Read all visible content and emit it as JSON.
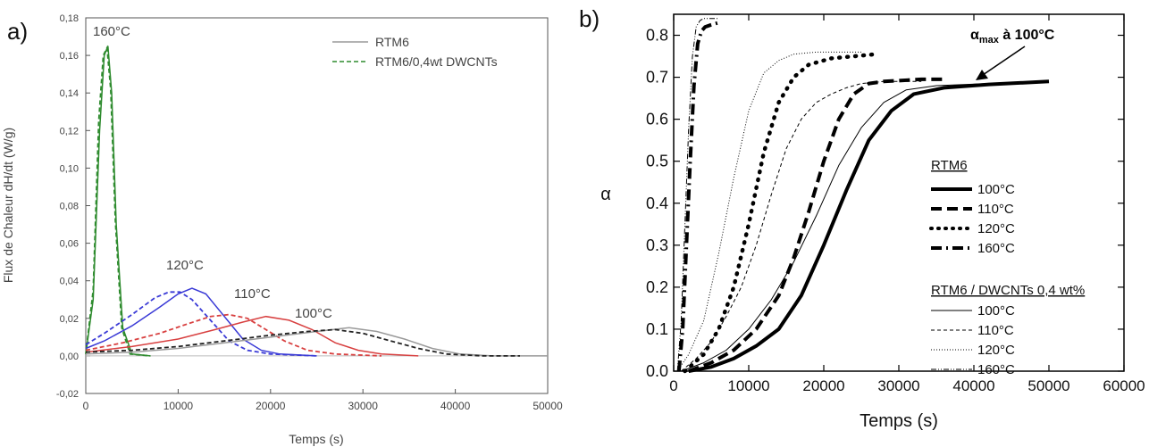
{
  "colors": {
    "rtm6": "#9a9a9a",
    "dwcnt_160": "#2e8b2e",
    "blue": "#3a3ad6",
    "red": "#d84040",
    "black": "#222222"
  },
  "panel_a": {
    "label": "a)",
    "ylabel": "Flux de Chaleur dH/dt (W/g)",
    "xlabel": "Temps (s)",
    "legend": [
      "RTM6",
      "RTM6/0,4wt DWCNTs"
    ],
    "annotations": [
      "160°C",
      "120°C",
      "110°C",
      "100°C"
    ]
  },
  "panel_b": {
    "label": "b)",
    "ylabel": "α",
    "xlabel": "Temps (s)",
    "annotation_main": "α",
    "annotation_sub": "max",
    "annotation_rest": " à 100°C",
    "legend_group1_title": "RTM6",
    "legend_group1": [
      "100°C",
      "110°C",
      "120°C",
      "160°C"
    ],
    "legend_group2_title": "RTM6 / DWCNTs 0,4 wt%",
    "legend_group2": [
      "100°C",
      "110°C",
      "120°C",
      "160°C"
    ]
  },
  "chart_data": [
    {
      "type": "line",
      "xlabel": "Temps (s)",
      "ylabel": "Flux de Chaleur dH/dt (W/g)",
      "xlim": [
        0,
        50000
      ],
      "ylim": [
        -0.02,
        0.18
      ],
      "xticks": [
        "0",
        "10000",
        "20000",
        "30000",
        "40000",
        "50000"
      ],
      "yticks": [
        "-0,02",
        "0,00",
        "0,02",
        "0,04",
        "0,06",
        "0,08",
        "0,10",
        "0,12",
        "0,14",
        "0,16",
        "0,18"
      ],
      "grid": false,
      "legend_position": "top-right",
      "series": [
        {
          "name": "RTM6",
          "temp": "160°C",
          "color": "#2e8b2e",
          "dash": false,
          "x": [
            0,
            800,
            1500,
            2000,
            2400,
            2800,
            3300,
            4000,
            5000,
            7000
          ],
          "y": [
            0.001,
            0.03,
            0.12,
            0.16,
            0.165,
            0.14,
            0.07,
            0.015,
            0.001,
            0
          ]
        },
        {
          "name": "RTM6/0,4wt DWCNTs",
          "temp": "160°C",
          "color": "#2e8b2e",
          "dash": true,
          "x": [
            0,
            800,
            1400,
            1900,
            2300,
            2700,
            3200,
            3900,
            4800,
            7000
          ],
          "y": [
            0.001,
            0.035,
            0.125,
            0.16,
            0.164,
            0.142,
            0.072,
            0.015,
            0.001,
            0
          ]
        },
        {
          "name": "RTM6",
          "temp": "120°C",
          "color": "#3a3ad6",
          "dash": false,
          "x": [
            0,
            2000,
            5000,
            8000,
            10000,
            11500,
            13000,
            15000,
            17000,
            19000,
            21000,
            25000
          ],
          "y": [
            0.004,
            0.008,
            0.016,
            0.026,
            0.033,
            0.036,
            0.033,
            0.021,
            0.009,
            0.003,
            0.001,
            0
          ]
        },
        {
          "name": "RTM6/0,4wt DWCNTs",
          "temp": "120°C",
          "color": "#3a3ad6",
          "dash": true,
          "x": [
            0,
            2000,
            5000,
            7500,
            9000,
            10200,
            11500,
            13500,
            15500,
            17500,
            20000,
            25000
          ],
          "y": [
            0.006,
            0.012,
            0.022,
            0.031,
            0.034,
            0.034,
            0.03,
            0.019,
            0.008,
            0.003,
            0.001,
            0
          ]
        },
        {
          "name": "RTM6",
          "temp": "110°C",
          "color": "#d84040",
          "dash": false,
          "x": [
            0,
            5000,
            10000,
            14000,
            17000,
            19500,
            22000,
            24500,
            27000,
            29500,
            32000,
            36000
          ],
          "y": [
            0.002,
            0.005,
            0.009,
            0.014,
            0.018,
            0.021,
            0.019,
            0.014,
            0.007,
            0.003,
            0.001,
            0
          ]
        },
        {
          "name": "RTM6/0,4wt DWCNTs",
          "temp": "110°C",
          "color": "#d84040",
          "dash": true,
          "x": [
            0,
            4000,
            8000,
            11000,
            13500,
            15500,
            17500,
            19500,
            21500,
            24000,
            27000,
            32000
          ],
          "y": [
            0.003,
            0.007,
            0.012,
            0.017,
            0.021,
            0.022,
            0.02,
            0.014,
            0.008,
            0.003,
            0.001,
            0
          ]
        },
        {
          "name": "RTM6",
          "temp": "100°C",
          "color": "#9a9a9a",
          "dash": false,
          "x": [
            0,
            5000,
            10000,
            15000,
            20000,
            25000,
            28500,
            31500,
            34500,
            37500,
            40500,
            44000,
            50000
          ],
          "y": [
            0.001,
            0.002,
            0.004,
            0.007,
            0.01,
            0.013,
            0.015,
            0.013,
            0.009,
            0.004,
            0.001,
            0,
            0
          ]
        },
        {
          "name": "RTM6/0,4wt DWCNTs",
          "temp": "100°C",
          "color": "#222222",
          "dash": true,
          "x": [
            0,
            5000,
            10000,
            15000,
            20000,
            24000,
            27000,
            30000,
            33000,
            36000,
            39000,
            43000,
            47000
          ],
          "y": [
            0.002,
            0.003,
            0.005,
            0.008,
            0.011,
            0.013,
            0.014,
            0.012,
            0.008,
            0.004,
            0.001,
            0,
            0
          ]
        }
      ]
    },
    {
      "type": "line",
      "xlabel": "Temps (s)",
      "ylabel": "α",
      "xlim": [
        0,
        60000
      ],
      "ylim": [
        0.0,
        0.85
      ],
      "xticks": [
        "0",
        "10000",
        "20000",
        "30000",
        "40000",
        "50000",
        "60000"
      ],
      "yticks": [
        "0.0",
        "0.1",
        "0.2",
        "0.3",
        "0.4",
        "0.5",
        "0.6",
        "0.7",
        "0.8"
      ],
      "grid": false,
      "legend_position": "center-right",
      "series": [
        {
          "name": "RTM6 100°C",
          "style": "thick-solid",
          "x": [
            2000,
            5000,
            8000,
            11000,
            14000,
            17000,
            20000,
            23000,
            26000,
            29000,
            32000,
            36000,
            42000,
            50000
          ],
          "y": [
            0,
            0.01,
            0.03,
            0.06,
            0.1,
            0.18,
            0.3,
            0.43,
            0.55,
            0.62,
            0.66,
            0.675,
            0.683,
            0.69
          ]
        },
        {
          "name": "RTM6 110°C",
          "style": "thick-dash",
          "x": [
            2000,
            5000,
            8000,
            11000,
            14000,
            16000,
            18000,
            20000,
            22000,
            24000,
            26000,
            28000,
            33000,
            36000
          ],
          "y": [
            0,
            0.02,
            0.05,
            0.1,
            0.18,
            0.27,
            0.38,
            0.5,
            0.6,
            0.66,
            0.685,
            0.69,
            0.695,
            0.695
          ]
        },
        {
          "name": "RTM6 120°C",
          "style": "thick-dot",
          "x": [
            1500,
            4000,
            6000,
            8000,
            10000,
            12000,
            14000,
            16000,
            18000,
            21000,
            24000,
            27000
          ],
          "y": [
            0,
            0.04,
            0.1,
            0.2,
            0.35,
            0.52,
            0.64,
            0.7,
            0.73,
            0.745,
            0.75,
            0.755
          ]
        },
        {
          "name": "RTM6 160°C",
          "style": "thick-dashdot",
          "x": [
            700,
            1200,
            1700,
            2200,
            2700,
            3200,
            3700,
            4200,
            5000,
            6000
          ],
          "y": [
            0,
            0.1,
            0.3,
            0.5,
            0.68,
            0.78,
            0.81,
            0.82,
            0.825,
            0.83
          ]
        },
        {
          "name": "RTM6 / DWCNTs 0,4 wt% 100°C",
          "style": "thin-solid",
          "x": [
            1000,
            4000,
            7000,
            10000,
            13000,
            16000,
            19000,
            22000,
            25000,
            28000,
            31000,
            35000,
            42000,
            50000
          ],
          "y": [
            0,
            0.02,
            0.05,
            0.1,
            0.17,
            0.26,
            0.37,
            0.49,
            0.58,
            0.64,
            0.67,
            0.68,
            0.685,
            0.69
          ]
        },
        {
          "name": "RTM6 / DWCNTs 0,4 wt% 110°C",
          "style": "thin-dash",
          "x": [
            1000,
            3000,
            5000,
            7000,
            9000,
            11000,
            13000,
            15000,
            17000,
            19000,
            21000,
            23000,
            25000,
            28000,
            33000
          ],
          "y": [
            0,
            0.03,
            0.07,
            0.13,
            0.2,
            0.3,
            0.42,
            0.53,
            0.6,
            0.64,
            0.66,
            0.675,
            0.685,
            0.69,
            0.69
          ]
        },
        {
          "name": "RTM6 / DWCNTs 0,4 wt% 120°C",
          "style": "thin-dot",
          "x": [
            500,
            2000,
            4000,
            6000,
            8000,
            10000,
            12000,
            14000,
            16000,
            19000,
            22000,
            25000
          ],
          "y": [
            0,
            0.04,
            0.12,
            0.28,
            0.46,
            0.62,
            0.71,
            0.74,
            0.755,
            0.76,
            0.76,
            0.76
          ]
        },
        {
          "name": "RTM6 / DWCNTs 0,4 wt% 160°C",
          "style": "thin-dashdotdot",
          "x": [
            500,
            1000,
            1500,
            2000,
            2500,
            3000,
            3500,
            4000,
            5000,
            6000
          ],
          "y": [
            0,
            0.12,
            0.35,
            0.58,
            0.75,
            0.82,
            0.835,
            0.84,
            0.84,
            0.84
          ]
        }
      ]
    }
  ]
}
